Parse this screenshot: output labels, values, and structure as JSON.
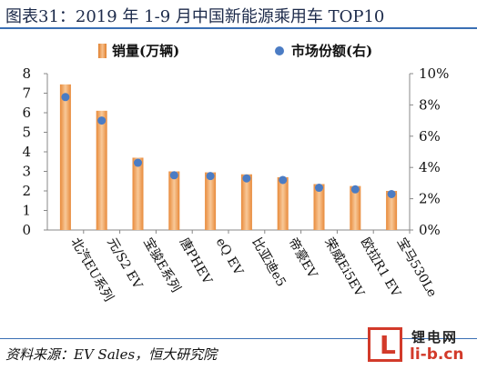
{
  "figure": {
    "title": "图表31：2019 年 1-9 月中国新能源乘用车 TOP10",
    "source": "资料来源：EV Sales，恒大研究院"
  },
  "watermark": {
    "logo_char": "L",
    "top_text": "锂电网",
    "bottom_text": "li-b.cn"
  },
  "chart_data": {
    "type": "bar",
    "categories": [
      "北汽EU系列",
      "元/S2 EV",
      "宝骏E系列",
      "唐PHEV",
      "eQ EV",
      "比亚迪e5",
      "帝豪EV",
      "荣威Ei5EV",
      "欧拉R1 EV",
      "宝马530Le"
    ],
    "series": [
      {
        "name": "销量(万辆)",
        "type": "bar",
        "axis": "left",
        "values": [
          7.45,
          6.1,
          3.7,
          3.0,
          2.95,
          2.85,
          2.7,
          2.35,
          2.25,
          2.0
        ]
      },
      {
        "name": "市场份额(右)",
        "type": "scatter",
        "axis": "right",
        "values": [
          8.5,
          7.0,
          4.3,
          3.5,
          3.45,
          3.3,
          3.2,
          2.7,
          2.6,
          2.3
        ]
      }
    ],
    "y_left": {
      "min": 0,
      "max": 8,
      "ticks": [
        0,
        1,
        2,
        3,
        4,
        5,
        6,
        7,
        8
      ]
    },
    "y_right": {
      "min": 0,
      "max": 10,
      "ticks": [
        0,
        2,
        4,
        6,
        8,
        10
      ],
      "unit": "%"
    },
    "legend_position": "top",
    "grid": false,
    "colors": {
      "bar": "#e88a3a",
      "bar_light": "#f8c898",
      "dot": "#4b7cc4",
      "axis": "#888888"
    }
  }
}
